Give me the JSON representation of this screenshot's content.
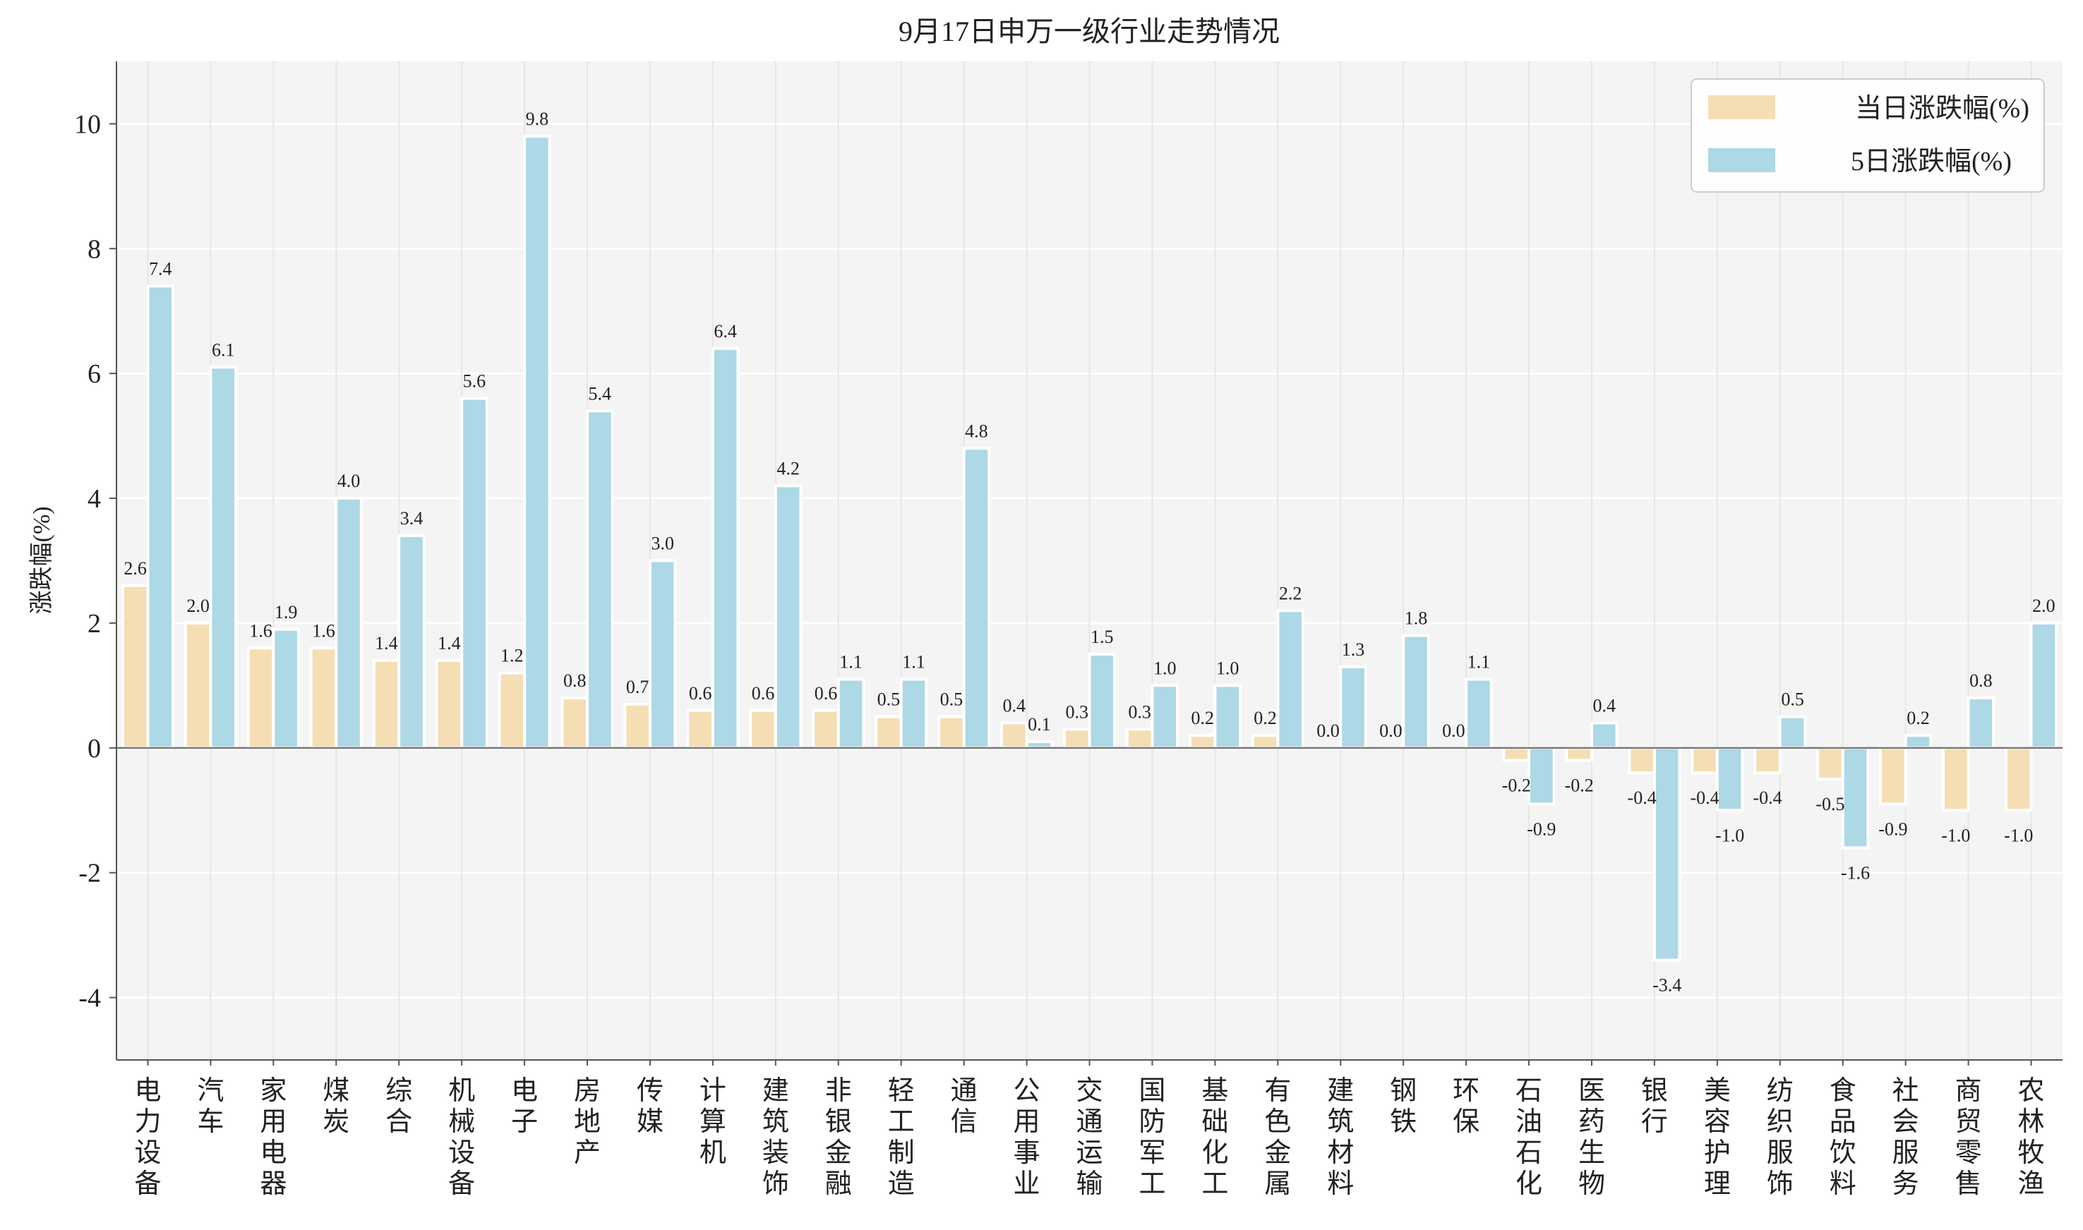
{
  "chart_data": {
    "type": "bar",
    "title": "9月17日申万一级行业走势情况",
    "xlabel": "",
    "ylabel": "涨跌幅(%)",
    "ylim": [
      -5,
      11
    ],
    "yticks": [
      -4,
      -2,
      0,
      2,
      4,
      6,
      8,
      10
    ],
    "grid": true,
    "legend_position": "top-right",
    "background": "#f4f4f4",
    "categories": [
      "电力设备",
      "汽车",
      "家用电器",
      "煤炭",
      "综合",
      "机械设备",
      "电子",
      "房地产",
      "传媒",
      "计算机",
      "建筑装饰",
      "非银金融",
      "轻工制造",
      "通信",
      "公用事业",
      "交通运输",
      "国防军工",
      "基础化工",
      "有色金属",
      "建筑材料",
      "钢铁",
      "环保",
      "石油石化",
      "医药生物",
      "银行",
      "美容护理",
      "纺织服饰",
      "食品饮料",
      "社会服务",
      "商贸零售",
      "农林牧渔"
    ],
    "series": [
      {
        "name": "当日涨跌幅(%)",
        "color": "#f5deb3",
        "values": [
          2.6,
          2.0,
          1.6,
          1.6,
          1.4,
          1.4,
          1.2,
          0.8,
          0.7,
          0.6,
          0.6,
          0.6,
          0.5,
          0.5,
          0.4,
          0.3,
          0.3,
          0.2,
          0.2,
          0.0,
          0.0,
          0.0,
          -0.2,
          -0.2,
          -0.4,
          -0.4,
          -0.4,
          -0.5,
          -0.9,
          -1.0,
          -1.0
        ]
      },
      {
        "name": "5日涨跌幅(%)",
        "color": "#add8e6",
        "values": [
          7.4,
          6.1,
          1.9,
          4.0,
          3.4,
          5.6,
          9.8,
          5.4,
          3.0,
          6.4,
          4.2,
          1.1,
          1.1,
          4.8,
          0.1,
          1.5,
          1.0,
          1.0,
          2.2,
          1.3,
          1.8,
          1.1,
          -0.9,
          0.4,
          -3.4,
          -1.0,
          0.5,
          -1.6,
          0.2,
          0.8,
          2.0
        ]
      }
    ]
  }
}
